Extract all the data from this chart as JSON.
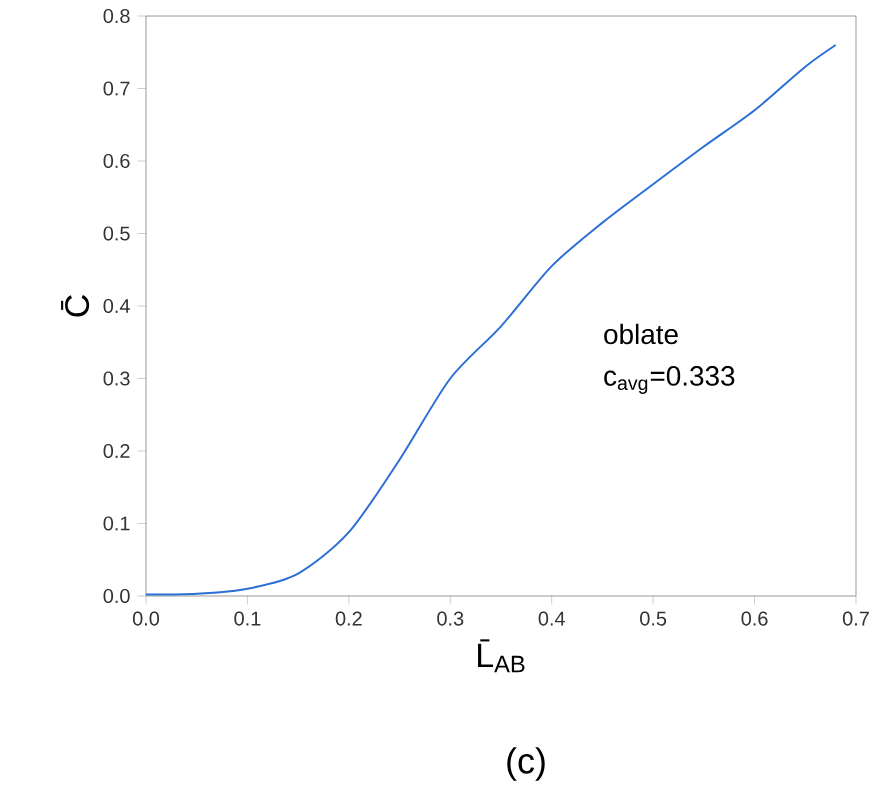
{
  "chart_data": {
    "type": "line",
    "xlabel": "L̄$_{AB}$",
    "ylabel": "C̄",
    "annotations": [
      "oblate",
      "c$_{avg}$=0.333",
      "(c)"
    ],
    "series": [
      {
        "color": "#2b6fd6",
        "x": [
          0,
          0.05,
          0.1,
          0.15,
          0.2,
          0.25,
          0.3,
          0.35,
          0.4,
          0.45,
          0.5,
          0.55,
          0.6,
          0.65,
          0.68
        ],
        "values": [
          0.002,
          0.003,
          0.01,
          0.031,
          0.088,
          0.188,
          0.3,
          0.372,
          0.455,
          0.515,
          0.568,
          0.62,
          0.67,
          0.73,
          0.76
        ]
      }
    ],
    "xlim": [
      0,
      0.7
    ],
    "ylim": [
      0,
      0.8
    ],
    "xticks": [
      {
        "value": 0,
        "label": "0.0"
      },
      0.1,
      0.2,
      0.3,
      0.4,
      0.5,
      0.6,
      0.7
    ],
    "yticks": [
      {
        "value": 0,
        "label": "0.0"
      },
      0.1,
      0.2,
      0.3,
      0.4,
      0.5,
      0.6,
      0.7,
      0.8
    ],
    "grid": false,
    "marker": "none",
    "line_style": "solid"
  }
}
